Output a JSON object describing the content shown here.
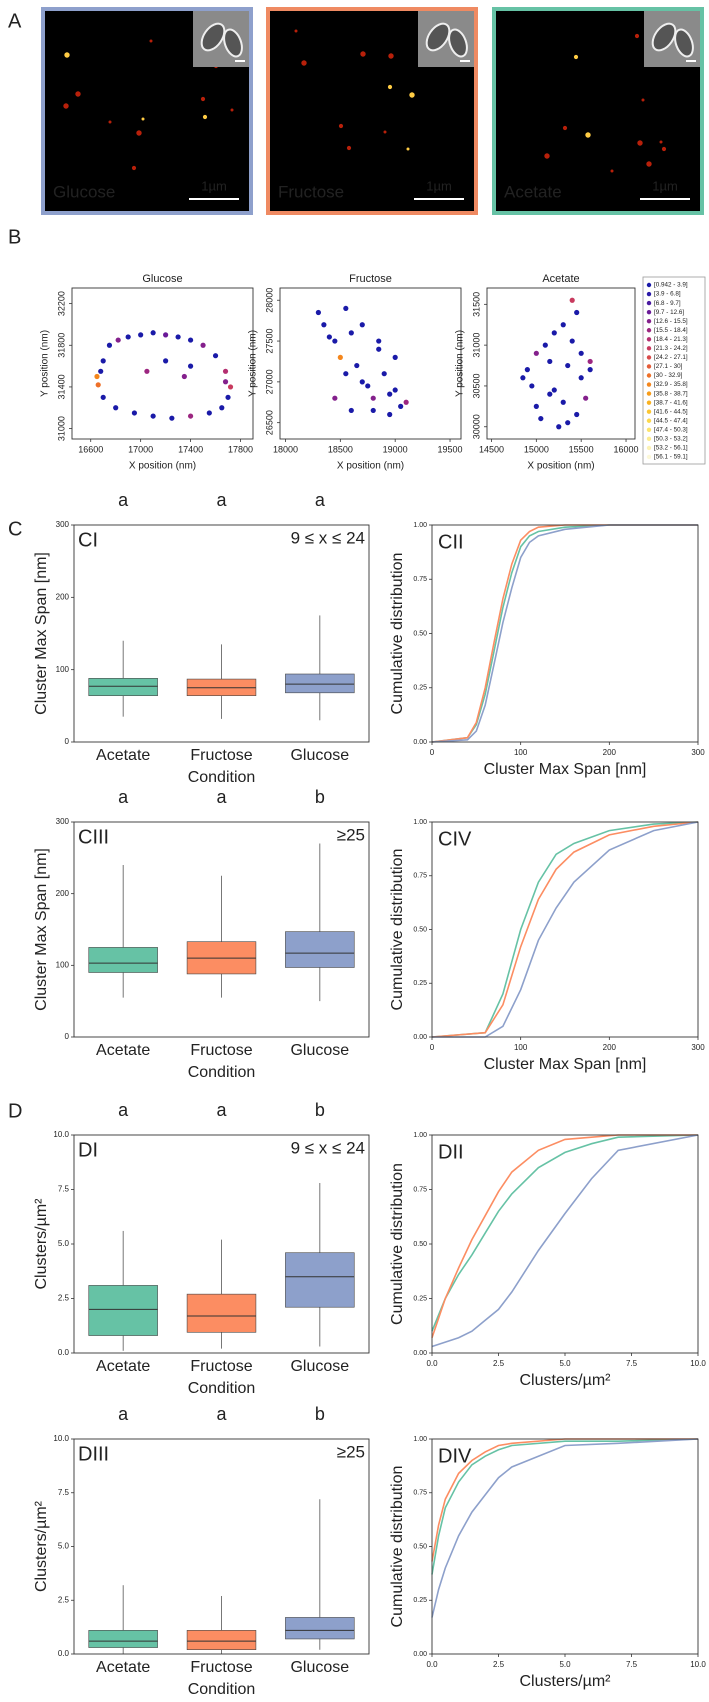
{
  "panel_labels": [
    "A",
    "B",
    "C",
    "D"
  ],
  "images": [
    {
      "label": "Glucose",
      "scale_bar": "1µm",
      "border": "#8ea0cc"
    },
    {
      "label": "Fructose",
      "scale_bar": "1µm",
      "border": "#ef8a62"
    },
    {
      "label": "Acetate",
      "scale_bar": "1µm",
      "border": "#66c2a5"
    }
  ],
  "legend": [
    {
      "label": "[0.942 - 3.9]",
      "color": "#1a1aa8"
    },
    {
      "label": "[3.9 - 6.8]",
      "color": "#2b1aa8"
    },
    {
      "label": "[6.8 - 9.7]",
      "color": "#4a1aa0"
    },
    {
      "label": "[9.7 - 12.6]",
      "color": "#6a1a98"
    },
    {
      "label": "[12.6 - 15.5]",
      "color": "#84208c"
    },
    {
      "label": "[15.5 - 18.4]",
      "color": "#9c2680"
    },
    {
      "label": "[18.4 - 21.3]",
      "color": "#b42e70"
    },
    {
      "label": "[21.3 - 24.2]",
      "color": "#c83a5e"
    },
    {
      "label": "[24.2 - 27.1]",
      "color": "#d84a4a"
    },
    {
      "label": "[27.1 - 30]",
      "color": "#e45c38"
    },
    {
      "label": "[30 - 32.9]",
      "color": "#ee7028"
    },
    {
      "label": "[32.9 - 35.8]",
      "color": "#f4861c"
    },
    {
      "label": "[35.8 - 38.7]",
      "color": "#f89c18"
    },
    {
      "label": "[38.7 - 41.6]",
      "color": "#fab220"
    },
    {
      "label": "[41.6 - 44.5]",
      "color": "#fcc632"
    },
    {
      "label": "[44.5 - 47.4]",
      "color": "#fcd84c"
    },
    {
      "label": "[47.4 - 50.3]",
      "color": "#fce46c"
    },
    {
      "label": "[50.3 - 53.2]",
      "color": "#fcec90"
    },
    {
      "label": "[53.2 - 56.1]",
      "color": "#fcf2b4"
    },
    {
      "label": "[56.1 - 59.1]",
      "color": "#fcf8d8"
    }
  ],
  "chart_data": [
    {
      "type": "scatter",
      "title": "Glucose",
      "xlabel": "X position (nm)",
      "ylabel": "Y position (nm)",
      "x": [
        16650,
        16700,
        16750,
        16820,
        16900,
        17000,
        17100,
        17200,
        17300,
        17400,
        17500,
        17600,
        17680,
        17720,
        17700,
        17650,
        17550,
        17400,
        17250,
        17100,
        16950,
        16800,
        16700,
        16660,
        17050,
        17200,
        17350,
        17400,
        16680,
        17680
      ],
      "y": [
        31500,
        31650,
        31800,
        31850,
        31880,
        31900,
        31920,
        31900,
        31880,
        31850,
        31800,
        31700,
        31550,
        31400,
        31300,
        31200,
        31150,
        31120,
        31100,
        31120,
        31150,
        31200,
        31300,
        31420,
        31550,
        31650,
        31500,
        31600,
        31550,
        31450
      ],
      "point_colors": [
        "#f4861c",
        "#1a1aa8",
        "#1a1aa8",
        "#84208c",
        "#1a1aa8",
        "#1a1aa8",
        "#1a1aa8",
        "#6a1a98",
        "#1a1aa8",
        "#1a1aa8",
        "#84208c",
        "#1a1aa8",
        "#b42e70",
        "#c83a5e",
        "#1a1aa8",
        "#1a1aa8",
        "#1a1aa8",
        "#9c2680",
        "#1a1aa8",
        "#1a1aa8",
        "#1a1aa8",
        "#1a1aa8",
        "#1a1aa8",
        "#ee7028",
        "#9c2680",
        "#1a1aa8",
        "#84208c",
        "#1a1aa8",
        "#1a1aa8",
        "#84208c"
      ],
      "xlim": [
        16450,
        17900
      ],
      "ylim": [
        30900,
        32350
      ],
      "xticks": [
        16600,
        17000,
        17400,
        17800
      ],
      "yticks": [
        31000,
        31400,
        31800,
        32200
      ]
    },
    {
      "type": "scatter",
      "title": "Fructose",
      "xlabel": "X position (nm)",
      "ylabel": "Y position (nm)",
      "x": [
        18300,
        18350,
        18450,
        18500,
        18550,
        18600,
        18650,
        18700,
        18750,
        18800,
        18850,
        18900,
        18950,
        19000,
        19050,
        19100,
        18450,
        18600,
        18700,
        18850,
        19000,
        18550,
        18800,
        18950,
        18400
      ],
      "y": [
        27850,
        27700,
        27500,
        27300,
        27900,
        27600,
        27200,
        27000,
        26950,
        26800,
        27400,
        27100,
        26850,
        27300,
        26700,
        26750,
        26800,
        26650,
        27700,
        27500,
        26900,
        27100,
        26650,
        26600,
        27550
      ],
      "point_colors": [
        "#1a1aa8",
        "#1a1aa8",
        "#1a1aa8",
        "#f4861c",
        "#1a1aa8",
        "#1a1aa8",
        "#1a1aa8",
        "#1a1aa8",
        "#1a1aa8",
        "#84208c",
        "#1a1aa8",
        "#1a1aa8",
        "#1a1aa8",
        "#1a1aa8",
        "#1a1aa8",
        "#9c2680",
        "#84208c",
        "#1a1aa8",
        "#1a1aa8",
        "#1a1aa8",
        "#1a1aa8",
        "#1a1aa8",
        "#1a1aa8",
        "#1a1aa8",
        "#1a1aa8"
      ],
      "xlim": [
        17950,
        19600
      ],
      "ylim": [
        26300,
        28150
      ],
      "xticks": [
        18000,
        18500,
        19000,
        19500
      ],
      "yticks": [
        26500,
        27000,
        27500,
        28000
      ]
    },
    {
      "type": "scatter",
      "title": "Acetate",
      "xlabel": "X position (nm)",
      "ylabel": "Y position (nm)",
      "x": [
        15400,
        15450,
        15300,
        15200,
        15100,
        15000,
        14900,
        14950,
        15150,
        15300,
        15500,
        15600,
        15550,
        15450,
        15350,
        15250,
        15050,
        14850,
        15400,
        15600,
        15200,
        15000,
        15350,
        15500,
        15150
      ],
      "y": [
        31550,
        31400,
        31250,
        31150,
        31000,
        30900,
        30700,
        30500,
        30400,
        30300,
        30600,
        30800,
        30350,
        30150,
        30050,
        30000,
        30100,
        30600,
        31050,
        30700,
        30450,
        30250,
        30750,
        30900,
        30800
      ],
      "point_colors": [
        "#c83a5e",
        "#1a1aa8",
        "#1a1aa8",
        "#1a1aa8",
        "#1a1aa8",
        "#84208c",
        "#1a1aa8",
        "#1a1aa8",
        "#1a1aa8",
        "#1a1aa8",
        "#1a1aa8",
        "#9c2680",
        "#84208c",
        "#1a1aa8",
        "#1a1aa8",
        "#1a1aa8",
        "#1a1aa8",
        "#1a1aa8",
        "#1a1aa8",
        "#1a1aa8",
        "#1a1aa8",
        "#1a1aa8",
        "#1a1aa8",
        "#1a1aa8",
        "#1a1aa8"
      ],
      "xlim": [
        14450,
        16100
      ],
      "ylim": [
        29850,
        31700
      ],
      "xticks": [
        14500,
        15000,
        15500,
        16000
      ],
      "yticks": [
        30000,
        30500,
        31000,
        31500
      ]
    },
    {
      "type": "box",
      "panel_tag": "CI",
      "range_label": "9 ≤ x ≤ 24",
      "letters": [
        "a",
        "a",
        "a"
      ],
      "ylabel": "Cluster Max Span [nm]",
      "xlabel": "Condition",
      "categories": [
        "Acetate",
        "Fructose",
        "Glucose"
      ],
      "ylim": [
        0,
        300
      ],
      "yticks": [
        0,
        100,
        200,
        300
      ],
      "boxes": [
        {
          "color": "#66c2a5",
          "q1": 64,
          "median": 77,
          "q3": 88,
          "low": 35,
          "high": 140
        },
        {
          "color": "#fc8d62",
          "q1": 64,
          "median": 75,
          "q3": 87,
          "low": 32,
          "high": 135
        },
        {
          "color": "#8da0cb",
          "q1": 68,
          "median": 80,
          "q3": 94,
          "low": 30,
          "high": 175
        }
      ]
    },
    {
      "type": "line",
      "panel_tag": "CII",
      "xlabel": "Cluster Max Span [nm]",
      "ylabel": "Cumulative distribution",
      "x": [
        0,
        40,
        50,
        60,
        70,
        80,
        90,
        100,
        110,
        120,
        150,
        200,
        300
      ],
      "xlim": [
        0,
        300
      ],
      "xticks": [
        0,
        100,
        200,
        300
      ],
      "ylim": [
        0,
        1
      ],
      "yticks": [
        {
          "value": 0,
          "label": "0.00"
        },
        {
          "value": 0.25,
          "label": "0.25"
        },
        {
          "value": 0.5,
          "label": "0.50"
        },
        {
          "value": 0.75,
          "label": "0.75"
        },
        {
          "value": 1,
          "label": "1.00"
        }
      ],
      "series": [
        {
          "name": "Acetate",
          "color": "#66c2a5",
          "values": [
            0,
            0.02,
            0.08,
            0.22,
            0.42,
            0.62,
            0.78,
            0.9,
            0.95,
            0.97,
            0.99,
            1,
            1
          ]
        },
        {
          "name": "Fructose",
          "color": "#fc8d62",
          "values": [
            0,
            0.02,
            0.09,
            0.25,
            0.46,
            0.66,
            0.82,
            0.93,
            0.97,
            0.99,
            1,
            1,
            1
          ]
        },
        {
          "name": "Glucose",
          "color": "#8da0cb",
          "values": [
            0,
            0.01,
            0.05,
            0.17,
            0.36,
            0.55,
            0.71,
            0.85,
            0.92,
            0.95,
            0.98,
            1,
            1
          ]
        }
      ]
    },
    {
      "type": "box",
      "panel_tag": "CIII",
      "range_label": "≥25",
      "letters": [
        "a",
        "a",
        "b"
      ],
      "ylabel": "Cluster Max Span [nm]",
      "xlabel": "Condition",
      "categories": [
        "Acetate",
        "Fructose",
        "Glucose"
      ],
      "ylim": [
        0,
        300
      ],
      "yticks": [
        0,
        100,
        200,
        300
      ],
      "boxes": [
        {
          "color": "#66c2a5",
          "q1": 90,
          "median": 103,
          "q3": 125,
          "low": 55,
          "high": 240
        },
        {
          "color": "#fc8d62",
          "q1": 88,
          "median": 110,
          "q3": 133,
          "low": 55,
          "high": 225
        },
        {
          "color": "#8da0cb",
          "q1": 97,
          "median": 117,
          "q3": 147,
          "low": 50,
          "high": 270
        }
      ]
    },
    {
      "type": "line",
      "panel_tag": "CIV",
      "xlabel": "Cluster Max Span [nm]",
      "ylabel": "Cumulative distribution",
      "x": [
        0,
        60,
        80,
        100,
        120,
        140,
        160,
        200,
        250,
        300
      ],
      "xlim": [
        0,
        300
      ],
      "xticks": [
        0,
        100,
        200,
        300
      ],
      "ylim": [
        0,
        1
      ],
      "yticks": [
        {
          "value": 0,
          "label": "0.00"
        },
        {
          "value": 0.25,
          "label": "0.25"
        },
        {
          "value": 0.5,
          "label": "0.50"
        },
        {
          "value": 0.75,
          "label": "0.75"
        },
        {
          "value": 1,
          "label": "1.00"
        }
      ],
      "series": [
        {
          "name": "Acetate",
          "color": "#66c2a5",
          "values": [
            0,
            0.02,
            0.2,
            0.5,
            0.72,
            0.85,
            0.9,
            0.96,
            0.99,
            1
          ]
        },
        {
          "name": "Fructose",
          "color": "#fc8d62",
          "values": [
            0,
            0.02,
            0.15,
            0.42,
            0.64,
            0.78,
            0.86,
            0.94,
            0.98,
            1
          ]
        },
        {
          "name": "Glucose",
          "color": "#8da0cb",
          "values": [
            0,
            0,
            0.05,
            0.22,
            0.45,
            0.6,
            0.72,
            0.87,
            0.96,
            1
          ]
        }
      ]
    },
    {
      "type": "box",
      "panel_tag": "DI",
      "range_label": "9 ≤ x ≤ 24",
      "letters": [
        "a",
        "a",
        "b"
      ],
      "ylabel": "Clusters/µm²",
      "xlabel": "Condition",
      "categories": [
        "Acetate",
        "Fructose",
        "Glucose"
      ],
      "ylim": [
        0,
        10
      ],
      "yticks": [
        {
          "value": 0,
          "label": "0.0"
        },
        {
          "value": 2.5,
          "label": "2.5"
        },
        {
          "value": 5,
          "label": "5.0"
        },
        {
          "value": 7.5,
          "label": "7.5"
        },
        {
          "value": 10,
          "label": "10.0"
        }
      ],
      "boxes": [
        {
          "color": "#66c2a5",
          "q1": 0.8,
          "median": 2.0,
          "q3": 3.1,
          "low": 0.1,
          "high": 5.6
        },
        {
          "color": "#fc8d62",
          "q1": 0.95,
          "median": 1.7,
          "q3": 2.7,
          "low": 0.2,
          "high": 5.2
        },
        {
          "color": "#8da0cb",
          "q1": 2.1,
          "median": 3.5,
          "q3": 4.6,
          "low": 0.3,
          "high": 7.8
        }
      ]
    },
    {
      "type": "line",
      "panel_tag": "DII",
      "xlabel": "Clusters/µm²",
      "ylabel": "Cumulative distribution",
      "x": [
        0,
        0.5,
        1,
        1.5,
        2,
        2.5,
        3,
        4,
        5,
        6,
        7,
        10
      ],
      "xlim": [
        0,
        10
      ],
      "xticks": [
        {
          "value": 0,
          "label": "0.0"
        },
        {
          "value": 2.5,
          "label": "2.5"
        },
        {
          "value": 5,
          "label": "5.0"
        },
        {
          "value": 7.5,
          "label": "7.5"
        },
        {
          "value": 10,
          "label": "10.0"
        }
      ],
      "ylim": [
        0,
        1
      ],
      "yticks": [
        {
          "value": 0,
          "label": "0.00"
        },
        {
          "value": 0.25,
          "label": "0.25"
        },
        {
          "value": 0.5,
          "label": "0.50"
        },
        {
          "value": 0.75,
          "label": "0.75"
        },
        {
          "value": 1,
          "label": "1.00"
        }
      ],
      "series": [
        {
          "name": "Acetate",
          "color": "#66c2a5",
          "values": [
            0.1,
            0.25,
            0.36,
            0.45,
            0.55,
            0.65,
            0.73,
            0.85,
            0.92,
            0.96,
            0.99,
            1
          ]
        },
        {
          "name": "Fructose",
          "color": "#fc8d62",
          "values": [
            0.07,
            0.25,
            0.39,
            0.52,
            0.63,
            0.74,
            0.83,
            0.93,
            0.98,
            0.99,
            1,
            1
          ]
        },
        {
          "name": "Glucose",
          "color": "#8da0cb",
          "values": [
            0.03,
            0.05,
            0.07,
            0.1,
            0.15,
            0.2,
            0.28,
            0.47,
            0.64,
            0.8,
            0.93,
            1
          ]
        }
      ]
    },
    {
      "type": "box",
      "panel_tag": "DIII",
      "range_label": "≥25",
      "letters": [
        "a",
        "a",
        "b"
      ],
      "ylabel": "Clusters/µm²",
      "xlabel": "Condition",
      "categories": [
        "Acetate",
        "Fructose",
        "Glucose"
      ],
      "ylim": [
        0,
        10
      ],
      "yticks": [
        {
          "value": 0,
          "label": "0.0"
        },
        {
          "value": 2.5,
          "label": "2.5"
        },
        {
          "value": 5,
          "label": "5.0"
        },
        {
          "value": 7.5,
          "label": "7.5"
        },
        {
          "value": 10,
          "label": "10.0"
        }
      ],
      "boxes": [
        {
          "color": "#66c2a5",
          "q1": 0.3,
          "median": 0.6,
          "q3": 1.1,
          "low": 0,
          "high": 3.2
        },
        {
          "color": "#fc8d62",
          "q1": 0.2,
          "median": 0.6,
          "q3": 1.1,
          "low": 0,
          "high": 2.7
        },
        {
          "color": "#8da0cb",
          "q1": 0.7,
          "median": 1.1,
          "q3": 1.7,
          "low": 0.2,
          "high": 7.2
        }
      ]
    },
    {
      "type": "line",
      "panel_tag": "DIV",
      "xlabel": "Clusters/µm²",
      "ylabel": "Cumulative distribution",
      "x": [
        0,
        0.25,
        0.5,
        1,
        1.5,
        2,
        2.5,
        3,
        5,
        7,
        10
      ],
      "xlim": [
        0,
        10
      ],
      "xticks": [
        {
          "value": 0,
          "label": "0.0"
        },
        {
          "value": 2.5,
          "label": "2.5"
        },
        {
          "value": 5,
          "label": "5.0"
        },
        {
          "value": 7.5,
          "label": "7.5"
        },
        {
          "value": 10,
          "label": "10.0"
        }
      ],
      "ylim": [
        0,
        1
      ],
      "yticks": [
        {
          "value": 0,
          "label": "0.00"
        },
        {
          "value": 0.25,
          "label": "0.25"
        },
        {
          "value": 0.5,
          "label": "0.50"
        },
        {
          "value": 0.75,
          "label": "0.75"
        },
        {
          "value": 1,
          "label": "1.00"
        }
      ],
      "series": [
        {
          "name": "Acetate",
          "color": "#66c2a5",
          "values": [
            0.37,
            0.55,
            0.68,
            0.8,
            0.88,
            0.92,
            0.95,
            0.97,
            0.99,
            0.99,
            1
          ]
        },
        {
          "name": "Fructose",
          "color": "#fc8d62",
          "values": [
            0.43,
            0.6,
            0.72,
            0.84,
            0.9,
            0.94,
            0.97,
            0.98,
            1,
            1,
            1
          ]
        },
        {
          "name": "Glucose",
          "color": "#8da0cb",
          "values": [
            0.17,
            0.3,
            0.4,
            0.55,
            0.66,
            0.74,
            0.82,
            0.87,
            0.97,
            0.98,
            1
          ]
        }
      ]
    }
  ]
}
